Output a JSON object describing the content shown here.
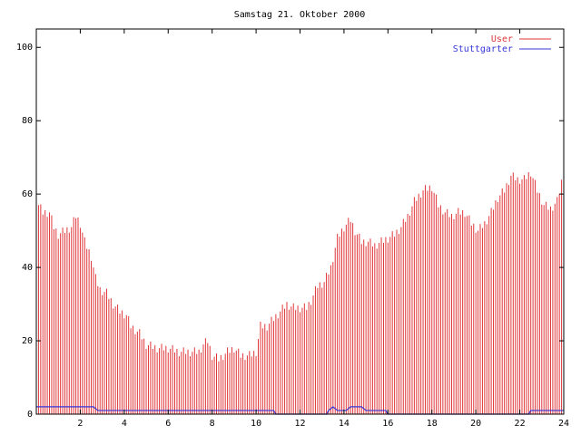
{
  "chart_data": {
    "type": "bar",
    "title": "Samstag 21. Oktober 2000",
    "xlabel": "",
    "ylabel": "",
    "xlim": [
      0,
      24
    ],
    "ylim": [
      0,
      105
    ],
    "xticks": [
      "2",
      "4",
      "6",
      "8",
      "10",
      "12",
      "14",
      "16",
      "18",
      "20",
      "22",
      "24"
    ],
    "yticks": [
      "0",
      "20",
      "40",
      "60",
      "80",
      "100"
    ],
    "grid": false,
    "legend_position": "top-right",
    "bin_hours": 0.1,
    "series": [
      {
        "name": "User",
        "color": "#e0363a",
        "style": "impulses",
        "knots": [
          [
            0.0,
            58
          ],
          [
            0.3,
            55
          ],
          [
            0.6,
            55
          ],
          [
            0.8,
            51
          ],
          [
            1.0,
            49
          ],
          [
            1.3,
            50
          ],
          [
            1.6,
            51
          ],
          [
            1.8,
            54
          ],
          [
            2.0,
            52
          ],
          [
            2.2,
            47
          ],
          [
            2.5,
            43
          ],
          [
            2.7,
            37
          ],
          [
            2.9,
            34
          ],
          [
            3.2,
            33
          ],
          [
            3.5,
            30
          ],
          [
            3.8,
            28
          ],
          [
            4.1,
            27
          ],
          [
            4.3,
            24
          ],
          [
            4.7,
            22
          ],
          [
            5.0,
            19
          ],
          [
            5.5,
            18
          ],
          [
            6.0,
            18
          ],
          [
            6.5,
            17
          ],
          [
            7.0,
            17
          ],
          [
            7.4,
            17
          ],
          [
            7.6,
            19
          ],
          [
            7.8,
            20
          ],
          [
            8.0,
            16
          ],
          [
            8.3,
            15
          ],
          [
            8.7,
            17
          ],
          [
            9.0,
            18
          ],
          [
            9.3,
            16
          ],
          [
            9.7,
            16
          ],
          [
            10.0,
            17
          ],
          [
            10.2,
            24
          ],
          [
            10.5,
            24
          ],
          [
            10.8,
            26
          ],
          [
            11.1,
            28
          ],
          [
            11.4,
            30
          ],
          [
            11.7,
            29
          ],
          [
            12.0,
            29
          ],
          [
            12.3,
            29
          ],
          [
            12.5,
            31
          ],
          [
            12.8,
            35
          ],
          [
            13.1,
            36
          ],
          [
            13.4,
            40
          ],
          [
            13.7,
            48
          ],
          [
            14.0,
            51
          ],
          [
            14.3,
            53
          ],
          [
            14.5,
            50
          ],
          [
            14.8,
            47
          ],
          [
            15.1,
            47
          ],
          [
            15.4,
            46
          ],
          [
            15.7,
            47
          ],
          [
            16.0,
            48
          ],
          [
            16.3,
            49
          ],
          [
            16.6,
            51
          ],
          [
            16.9,
            54
          ],
          [
            17.2,
            58
          ],
          [
            17.6,
            61
          ],
          [
            18.0,
            62
          ],
          [
            18.3,
            57
          ],
          [
            18.6,
            55
          ],
          [
            18.9,
            54
          ],
          [
            19.2,
            55
          ],
          [
            19.5,
            55
          ],
          [
            19.8,
            52
          ],
          [
            20.1,
            50
          ],
          [
            20.4,
            52
          ],
          [
            20.7,
            55
          ],
          [
            21.0,
            59
          ],
          [
            21.3,
            61
          ],
          [
            21.6,
            65
          ],
          [
            21.9,
            64
          ],
          [
            22.2,
            64
          ],
          [
            22.5,
            66
          ],
          [
            22.8,
            61
          ],
          [
            23.1,
            57
          ],
          [
            23.4,
            56
          ],
          [
            23.7,
            58
          ],
          [
            24.0,
            66
          ]
        ]
      },
      {
        "name": "Stuttgarter",
        "color": "#3636d8",
        "style": "lines",
        "points": [
          [
            0.0,
            2
          ],
          [
            2.6,
            2
          ],
          [
            2.8,
            1
          ],
          [
            10.8,
            1
          ],
          [
            10.9,
            0
          ],
          [
            13.2,
            0
          ],
          [
            13.3,
            1
          ],
          [
            13.5,
            2
          ],
          [
            13.7,
            1
          ],
          [
            14.1,
            1
          ],
          [
            14.3,
            2
          ],
          [
            14.8,
            2
          ],
          [
            15.0,
            1
          ],
          [
            15.9,
            1
          ],
          [
            16.0,
            0
          ],
          [
            22.4,
            0
          ],
          [
            22.5,
            1
          ],
          [
            24.0,
            1
          ]
        ]
      }
    ]
  }
}
